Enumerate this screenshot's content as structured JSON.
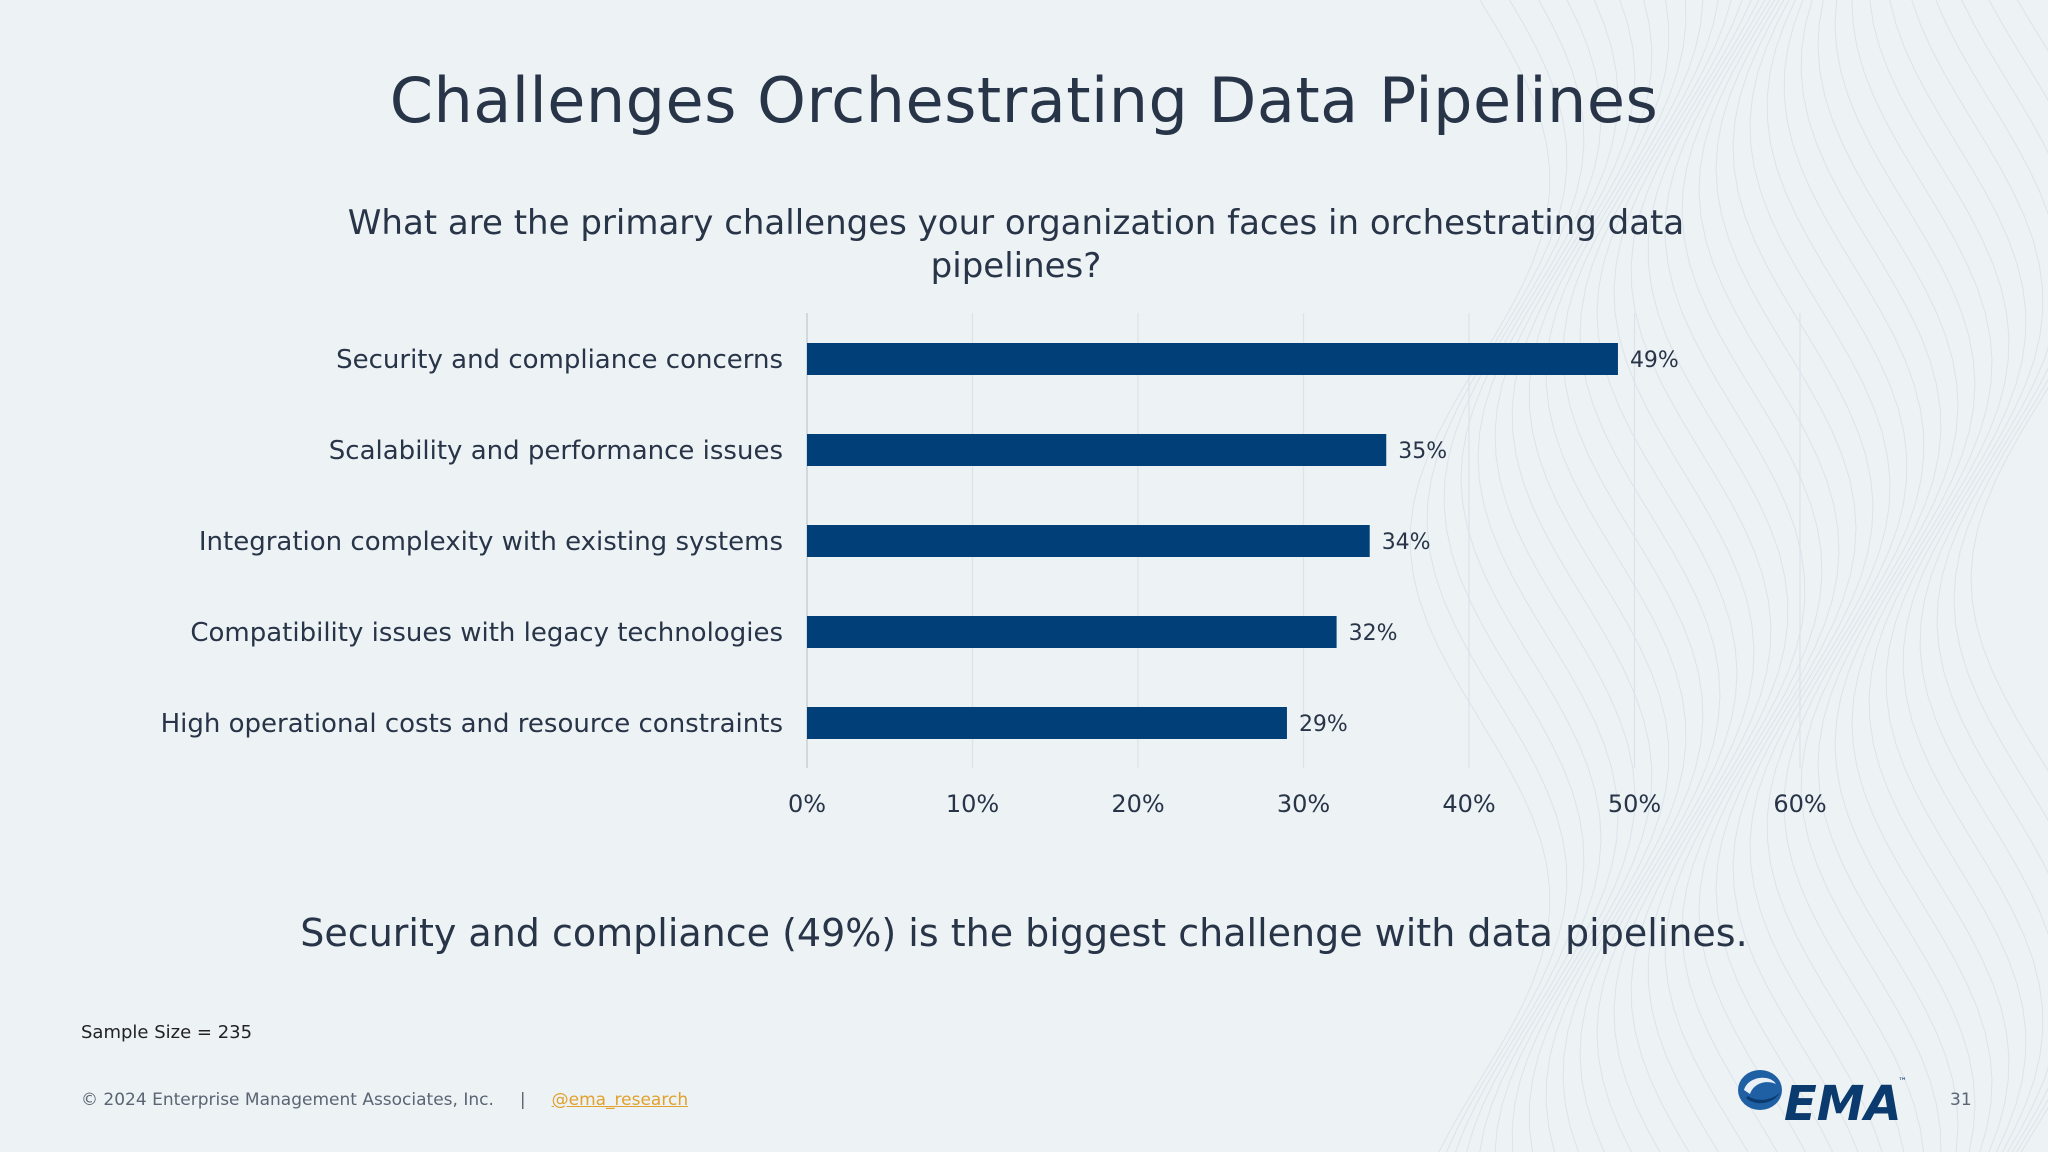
{
  "slide": {
    "title": "Challenges Orchestrating Data Pipelines",
    "question": "What are the primary challenges your organization faces in orchestrating data pipelines?",
    "takeaway": "Security and compliance (49%) is the biggest challenge with data pipelines.",
    "sample_size": "Sample Size = 235",
    "copyright": "© 2024 Enterprise Management Associates, Inc.",
    "separator": "|",
    "twitter_handle": "@ema_research",
    "page_number": "31",
    "logo_text": "EMA",
    "logo_tm": "™"
  },
  "colors": {
    "bar": "#003f77",
    "text": "#283447",
    "grid": "#dde3e8",
    "link": "#e1a12d",
    "background": "#edf2f5"
  },
  "chart_data": {
    "type": "bar",
    "orientation": "horizontal",
    "categories": [
      "Security and compliance concerns",
      "Scalability and performance issues",
      "Integration complexity with existing systems",
      "Compatibility issues with legacy technologies",
      "High operational costs and resource constraints"
    ],
    "values": [
      49,
      35,
      34,
      32,
      29
    ],
    "value_labels": [
      "49%",
      "35%",
      "34%",
      "32%",
      "29%"
    ],
    "xlim": [
      0,
      60
    ],
    "xticks": [
      0,
      10,
      20,
      30,
      40,
      50,
      60
    ],
    "xtick_labels": [
      "0%",
      "10%",
      "20%",
      "30%",
      "40%",
      "50%",
      "60%"
    ],
    "grid": "vertical",
    "legend": "none"
  }
}
